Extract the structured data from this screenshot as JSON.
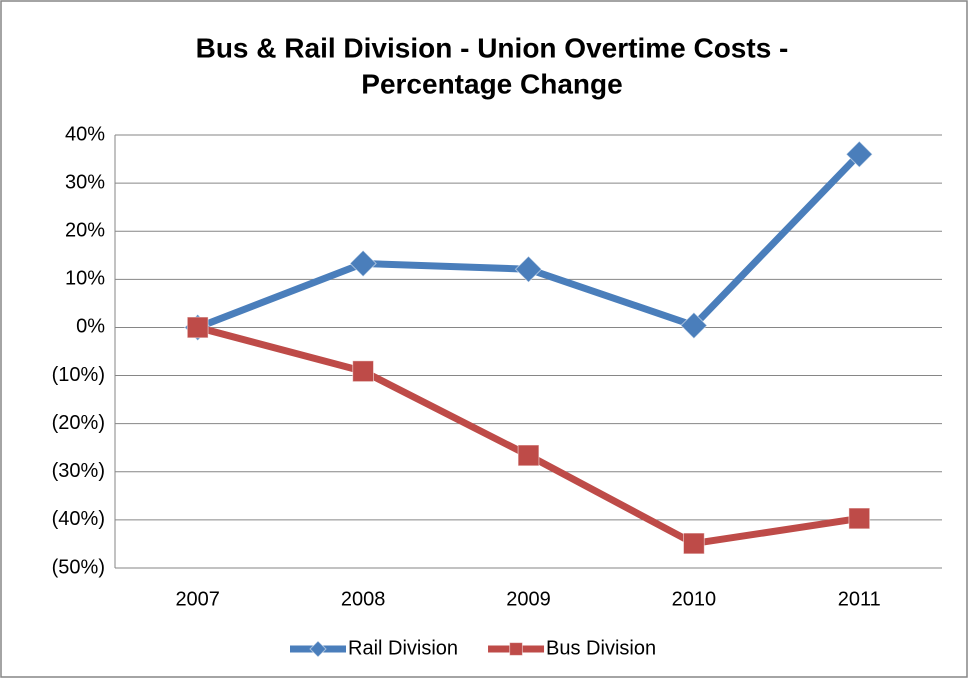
{
  "chart_data": {
    "type": "line",
    "title": [
      "Bus & Rail Division - Union Overtime Costs -",
      "Percentage Change"
    ],
    "categories": [
      "2007",
      "2008",
      "2009",
      "2010",
      "2011"
    ],
    "series": [
      {
        "name": "Rail Division",
        "color": "#4a7ebb",
        "marker": "diamond",
        "values": [
          0,
          13.3,
          12.1,
          0.4,
          36
        ]
      },
      {
        "name": "Bus Division",
        "color": "#be4b48",
        "marker": "square",
        "values": [
          0,
          -9.1,
          -26.6,
          -44.9,
          -39.7
        ]
      }
    ],
    "ylim": [
      -50,
      40
    ],
    "yticks": [
      {
        "value": 40,
        "label": "40%"
      },
      {
        "value": 30,
        "label": "30%"
      },
      {
        "value": 20,
        "label": "20%"
      },
      {
        "value": 10,
        "label": "10%"
      },
      {
        "value": 0,
        "label": "0%"
      },
      {
        "value": -10,
        "label": "(10%)"
      },
      {
        "value": -20,
        "label": "(20%)"
      },
      {
        "value": -30,
        "label": "(30%)"
      },
      {
        "value": -40,
        "label": "(40%)"
      },
      {
        "value": -50,
        "label": "(50%)"
      }
    ],
    "grid": true,
    "legend": "bottom"
  }
}
